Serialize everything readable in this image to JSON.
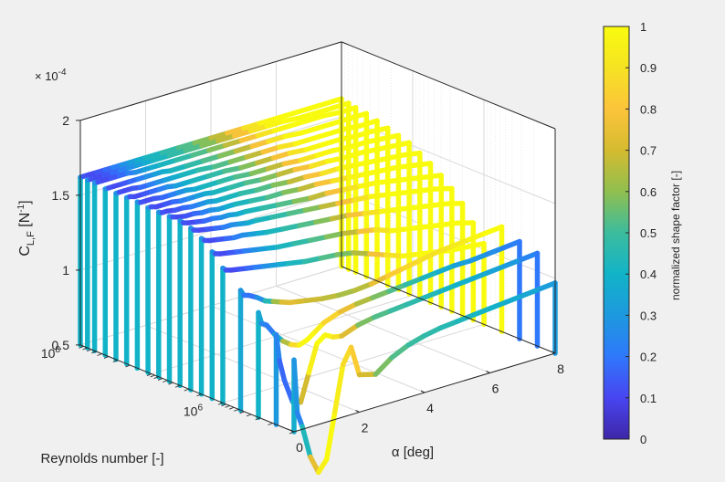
{
  "chart_data": {
    "type": "line",
    "title": "",
    "xlabel": "α [deg]",
    "ylabel": "Reynolds number [-]",
    "zlabel_main": "C",
    "zlabel_sub": "L,F",
    "zlabel_unit_open": " [N",
    "zlabel_unit_sup": "-1",
    "zlabel_unit_close": "]",
    "z_exponent_prefix": "× 10",
    "z_exponent": "-4",
    "xlim": [
      0,
      8
    ],
    "zlim": [
      0.5,
      2
    ],
    "ylog_range": [
      5,
      8
    ],
    "x_ticks": [
      {
        "value": 0,
        "label": "0"
      },
      {
        "value": 2,
        "label": "2"
      },
      {
        "value": 4,
        "label": "4"
      },
      {
        "value": 6,
        "label": "6"
      },
      {
        "value": 8,
        "label": "8"
      }
    ],
    "y_ticks": [
      {
        "value": 6,
        "label": "10",
        "sup": "6"
      },
      {
        "value": 8,
        "label": "10",
        "sup": "8"
      }
    ],
    "z_ticks": [
      {
        "value": 0.5,
        "label": "0.5"
      },
      {
        "value": 1,
        "label": "1"
      },
      {
        "value": 1.5,
        "label": "1.5"
      },
      {
        "value": 2,
        "label": "2"
      }
    ],
    "alpha": [
      0,
      0.1,
      0.25,
      0.5,
      0.75,
      1,
      1.25,
      1.5,
      1.75,
      2,
      2.5,
      3,
      3.5,
      4,
      4.5,
      5,
      5.5,
      6,
      6.5,
      7,
      7.5,
      8
    ],
    "series": [
      {
        "log_re": 5.0,
        "cl": [
          0.98,
          0.62,
          0.52,
          0.3,
          0.18,
          0.25,
          0.55,
          0.85,
          0.95,
          0.75,
          0.72,
          0.8,
          0.85,
          0.88,
          0.9,
          0.91,
          0.92,
          0.93,
          0.94,
          0.95,
          0.96,
          0.97
        ],
        "shape": [
          0.38,
          0.2,
          0.28,
          0.58,
          0.9,
          1.0,
          0.98,
          0.9,
          0.85,
          0.8,
          0.6,
          0.55,
          0.5,
          0.48,
          0.46,
          0.44,
          0.42,
          0.4,
          0.38,
          0.36,
          0.34,
          0.3
        ]
      },
      {
        "log_re": 5.25,
        "cl": [
          1.1,
          0.92,
          0.78,
          0.62,
          0.6,
          0.78,
          0.96,
          1.0,
          0.97,
          0.96,
          1.0,
          1.02,
          1.03,
          1.04,
          1.05,
          1.06,
          1.07,
          1.08,
          1.09,
          1.1,
          1.11,
          1.12
        ],
        "shape": [
          0.3,
          0.18,
          0.15,
          0.2,
          0.5,
          0.9,
          1.0,
          1.0,
          0.95,
          0.85,
          0.6,
          0.55,
          0.5,
          0.48,
          0.45,
          0.43,
          0.4,
          0.38,
          0.35,
          0.32,
          0.28,
          0.2
        ]
      },
      {
        "log_re": 5.5,
        "cl": [
          1.2,
          1.12,
          1.1,
          1.02,
          0.96,
          0.92,
          0.9,
          0.92,
          0.96,
          1.0,
          1.04,
          1.06,
          1.07,
          1.08,
          1.09,
          1.1,
          1.11,
          1.12,
          1.12,
          1.13,
          1.14,
          1.15
        ],
        "shape": [
          0.4,
          0.3,
          0.18,
          0.25,
          0.5,
          0.8,
          0.95,
          1.0,
          0.98,
          0.9,
          0.8,
          0.7,
          0.6,
          0.55,
          0.5,
          0.45,
          0.4,
          0.35,
          0.3,
          0.28,
          0.25,
          0.2
        ]
      },
      {
        "log_re": 5.75,
        "cl": [
          1.3,
          1.26,
          1.25,
          1.22,
          1.18,
          1.16,
          1.14,
          1.12,
          1.11,
          1.1,
          1.08,
          1.07,
          1.07,
          1.08,
          1.1,
          1.12,
          1.14,
          1.16,
          1.17,
          1.18,
          1.19,
          1.2
        ],
        "shape": [
          0.35,
          0.22,
          0.18,
          0.2,
          0.35,
          0.55,
          0.7,
          0.75,
          0.72,
          0.7,
          0.68,
          0.65,
          0.62,
          0.7,
          0.8,
          0.85,
          0.88,
          0.9,
          0.92,
          0.95,
          1.0,
          1.0
        ]
      },
      {
        "log_re": 6.0,
        "cl": [
          1.4,
          1.38,
          1.37,
          1.36,
          1.35,
          1.34,
          1.33,
          1.32,
          1.31,
          1.3,
          1.28,
          1.27,
          1.26,
          1.24,
          1.2,
          1.16,
          1.12,
          1.1,
          1.08,
          1.06,
          1.05,
          1.04
        ],
        "shape": [
          0.4,
          0.15,
          0.1,
          0.12,
          0.15,
          0.2,
          0.25,
          0.3,
          0.35,
          0.4,
          0.45,
          0.5,
          0.55,
          0.6,
          0.7,
          0.85,
          0.95,
          1.0,
          1.0,
          1.0,
          1.0,
          1.0
        ]
      },
      {
        "log_re": 6.15,
        "cl": [
          1.48,
          1.46,
          1.45,
          1.44,
          1.43,
          1.42,
          1.41,
          1.4,
          1.39,
          1.38,
          1.37,
          1.36,
          1.35,
          1.34,
          1.32,
          1.3,
          1.26,
          1.24,
          1.22,
          1.2,
          1.18,
          1.15
        ],
        "shape": [
          0.4,
          0.15,
          0.1,
          0.12,
          0.15,
          0.2,
          0.25,
          0.3,
          0.35,
          0.4,
          0.45,
          0.5,
          0.55,
          0.62,
          0.72,
          0.85,
          0.95,
          1.0,
          1.0,
          1.0,
          1.0,
          1.0
        ]
      },
      {
        "log_re": 6.3,
        "cl": [
          1.54,
          1.52,
          1.51,
          1.5,
          1.49,
          1.48,
          1.48,
          1.47,
          1.46,
          1.45,
          1.44,
          1.43,
          1.42,
          1.41,
          1.4,
          1.38,
          1.36,
          1.34,
          1.32,
          1.3,
          1.28,
          1.25
        ],
        "shape": [
          0.4,
          0.15,
          0.1,
          0.12,
          0.15,
          0.2,
          0.25,
          0.3,
          0.35,
          0.4,
          0.45,
          0.5,
          0.55,
          0.62,
          0.72,
          0.85,
          0.95,
          1.0,
          1.0,
          1.0,
          1.0,
          1.0
        ]
      },
      {
        "log_re": 6.45,
        "cl": [
          1.58,
          1.56,
          1.55,
          1.54,
          1.53,
          1.52,
          1.52,
          1.51,
          1.5,
          1.5,
          1.49,
          1.48,
          1.47,
          1.46,
          1.45,
          1.44,
          1.43,
          1.41,
          1.39,
          1.37,
          1.35,
          1.32
        ],
        "shape": [
          0.4,
          0.15,
          0.1,
          0.12,
          0.15,
          0.2,
          0.25,
          0.3,
          0.35,
          0.4,
          0.45,
          0.5,
          0.55,
          0.62,
          0.72,
          0.85,
          0.95,
          1.0,
          1.0,
          1.0,
          1.0,
          1.0
        ]
      },
      {
        "log_re": 6.6,
        "cl": [
          1.6,
          1.58,
          1.57,
          1.56,
          1.55,
          1.55,
          1.54,
          1.54,
          1.53,
          1.53,
          1.52,
          1.51,
          1.5,
          1.49,
          1.49,
          1.48,
          1.47,
          1.46,
          1.44,
          1.42,
          1.4,
          1.38
        ],
        "shape": [
          0.4,
          0.15,
          0.1,
          0.12,
          0.15,
          0.2,
          0.25,
          0.3,
          0.35,
          0.4,
          0.45,
          0.5,
          0.55,
          0.62,
          0.72,
          0.85,
          0.95,
          1.0,
          1.0,
          1.0,
          1.0,
          1.0
        ]
      },
      {
        "log_re": 6.75,
        "cl": [
          1.6,
          1.59,
          1.58,
          1.57,
          1.57,
          1.56,
          1.56,
          1.55,
          1.55,
          1.55,
          1.54,
          1.53,
          1.53,
          1.52,
          1.52,
          1.51,
          1.5,
          1.49,
          1.48,
          1.47,
          1.45,
          1.43
        ],
        "shape": [
          0.4,
          0.15,
          0.1,
          0.12,
          0.15,
          0.2,
          0.25,
          0.3,
          0.35,
          0.4,
          0.45,
          0.5,
          0.55,
          0.62,
          0.72,
          0.85,
          0.95,
          1.0,
          1.0,
          1.0,
          1.0,
          1.0
        ]
      },
      {
        "log_re": 6.9,
        "cl": [
          1.6,
          1.59,
          1.59,
          1.58,
          1.58,
          1.57,
          1.57,
          1.57,
          1.56,
          1.56,
          1.56,
          1.55,
          1.55,
          1.54,
          1.54,
          1.53,
          1.53,
          1.52,
          1.51,
          1.5,
          1.49,
          1.47
        ],
        "shape": [
          0.4,
          0.15,
          0.1,
          0.12,
          0.15,
          0.2,
          0.25,
          0.3,
          0.35,
          0.4,
          0.45,
          0.5,
          0.55,
          0.62,
          0.72,
          0.85,
          0.95,
          1.0,
          1.0,
          1.0,
          1.0,
          1.0
        ]
      },
      {
        "log_re": 7.05,
        "cl": [
          1.6,
          1.6,
          1.59,
          1.59,
          1.59,
          1.58,
          1.58,
          1.58,
          1.58,
          1.57,
          1.57,
          1.57,
          1.56,
          1.56,
          1.56,
          1.55,
          1.55,
          1.54,
          1.54,
          1.53,
          1.52,
          1.51
        ],
        "shape": [
          0.4,
          0.15,
          0.1,
          0.12,
          0.15,
          0.2,
          0.25,
          0.3,
          0.35,
          0.4,
          0.45,
          0.5,
          0.55,
          0.62,
          0.72,
          0.85,
          0.95,
          1.0,
          1.0,
          1.0,
          1.0,
          1.0
        ]
      },
      {
        "log_re": 7.2,
        "cl": [
          1.61,
          1.6,
          1.6,
          1.6,
          1.59,
          1.59,
          1.59,
          1.59,
          1.58,
          1.58,
          1.58,
          1.58,
          1.57,
          1.57,
          1.57,
          1.56,
          1.56,
          1.56,
          1.55,
          1.55,
          1.54,
          1.53
        ],
        "shape": [
          0.4,
          0.15,
          0.1,
          0.12,
          0.15,
          0.2,
          0.25,
          0.3,
          0.35,
          0.4,
          0.45,
          0.5,
          0.55,
          0.62,
          0.72,
          0.85,
          0.95,
          1.0,
          1.0,
          1.0,
          1.0,
          1.0
        ]
      },
      {
        "log_re": 7.35,
        "cl": [
          1.61,
          1.61,
          1.6,
          1.6,
          1.6,
          1.6,
          1.6,
          1.59,
          1.59,
          1.59,
          1.59,
          1.59,
          1.58,
          1.58,
          1.58,
          1.58,
          1.57,
          1.57,
          1.57,
          1.56,
          1.56,
          1.55
        ],
        "shape": [
          0.4,
          0.15,
          0.1,
          0.12,
          0.15,
          0.2,
          0.25,
          0.3,
          0.35,
          0.4,
          0.45,
          0.5,
          0.55,
          0.62,
          0.72,
          0.85,
          0.95,
          1.0,
          1.0,
          1.0,
          1.0,
          1.0
        ]
      },
      {
        "log_re": 7.5,
        "cl": [
          1.61,
          1.61,
          1.61,
          1.61,
          1.6,
          1.6,
          1.6,
          1.6,
          1.6,
          1.6,
          1.6,
          1.59,
          1.59,
          1.59,
          1.59,
          1.59,
          1.58,
          1.58,
          1.58,
          1.58,
          1.57,
          1.57
        ],
        "shape": [
          0.4,
          0.15,
          0.1,
          0.12,
          0.15,
          0.2,
          0.25,
          0.3,
          0.35,
          0.4,
          0.45,
          0.5,
          0.55,
          0.62,
          0.72,
          0.85,
          0.95,
          1.0,
          1.0,
          1.0,
          1.0,
          1.0
        ]
      },
      {
        "log_re": 7.65,
        "cl": [
          1.61,
          1.61,
          1.61,
          1.61,
          1.61,
          1.61,
          1.61,
          1.61,
          1.61,
          1.6,
          1.6,
          1.6,
          1.6,
          1.6,
          1.6,
          1.6,
          1.6,
          1.59,
          1.59,
          1.59,
          1.59,
          1.59
        ],
        "shape": [
          0.4,
          0.15,
          0.1,
          0.12,
          0.15,
          0.2,
          0.25,
          0.3,
          0.35,
          0.4,
          0.45,
          0.5,
          0.55,
          0.62,
          0.72,
          0.85,
          0.95,
          1.0,
          1.0,
          1.0,
          1.0,
          1.0
        ]
      },
      {
        "log_re": 7.8,
        "cl": [
          1.62,
          1.62,
          1.62,
          1.62,
          1.62,
          1.62,
          1.61,
          1.61,
          1.61,
          1.61,
          1.61,
          1.61,
          1.61,
          1.61,
          1.61,
          1.61,
          1.61,
          1.61,
          1.61,
          1.61,
          1.6,
          1.6
        ],
        "shape": [
          0.4,
          0.15,
          0.1,
          0.12,
          0.15,
          0.2,
          0.25,
          0.3,
          0.35,
          0.4,
          0.45,
          0.5,
          0.55,
          0.62,
          0.72,
          0.85,
          0.95,
          1.0,
          1.0,
          1.0,
          1.0,
          1.0
        ]
      },
      {
        "log_re": 7.9,
        "cl": [
          1.62,
          1.62,
          1.62,
          1.62,
          1.62,
          1.62,
          1.62,
          1.62,
          1.62,
          1.62,
          1.62,
          1.62,
          1.62,
          1.62,
          1.62,
          1.62,
          1.62,
          1.62,
          1.61,
          1.61,
          1.61,
          1.61
        ],
        "shape": [
          0.4,
          0.15,
          0.1,
          0.12,
          0.15,
          0.2,
          0.25,
          0.3,
          0.35,
          0.4,
          0.45,
          0.5,
          0.55,
          0.62,
          0.72,
          0.85,
          0.95,
          1.0,
          1.0,
          1.0,
          1.0,
          1.0
        ]
      },
      {
        "log_re": 8.0,
        "cl": [
          1.62,
          1.62,
          1.62,
          1.62,
          1.62,
          1.62,
          1.62,
          1.62,
          1.62,
          1.62,
          1.62,
          1.62,
          1.62,
          1.62,
          1.62,
          1.62,
          1.62,
          1.62,
          1.62,
          1.62,
          1.62,
          1.62
        ],
        "shape": [
          0.4,
          0.15,
          0.1,
          0.12,
          0.15,
          0.2,
          0.25,
          0.3,
          0.35,
          0.4,
          0.45,
          0.5,
          0.55,
          0.62,
          0.72,
          0.85,
          0.95,
          1.0,
          1.0,
          1.0,
          1.0,
          1.0
        ]
      }
    ],
    "colorbar": {
      "label": "normalized shape factor [-]",
      "range": [
        0,
        1
      ],
      "ticks": [
        "0",
        "0.1",
        "0.2",
        "0.3",
        "0.4",
        "0.5",
        "0.6",
        "0.7",
        "0.8",
        "0.9",
        "1"
      ],
      "colormap": [
        "#3e26a8",
        "#4845f0",
        "#2f78fb",
        "#1d99de",
        "#12b3c8",
        "#3cbc9d",
        "#90bf4f",
        "#d5bb30",
        "#fcc43a",
        "#f5e323",
        "#f9fb0e"
      ]
    },
    "grid": true,
    "box": true
  }
}
